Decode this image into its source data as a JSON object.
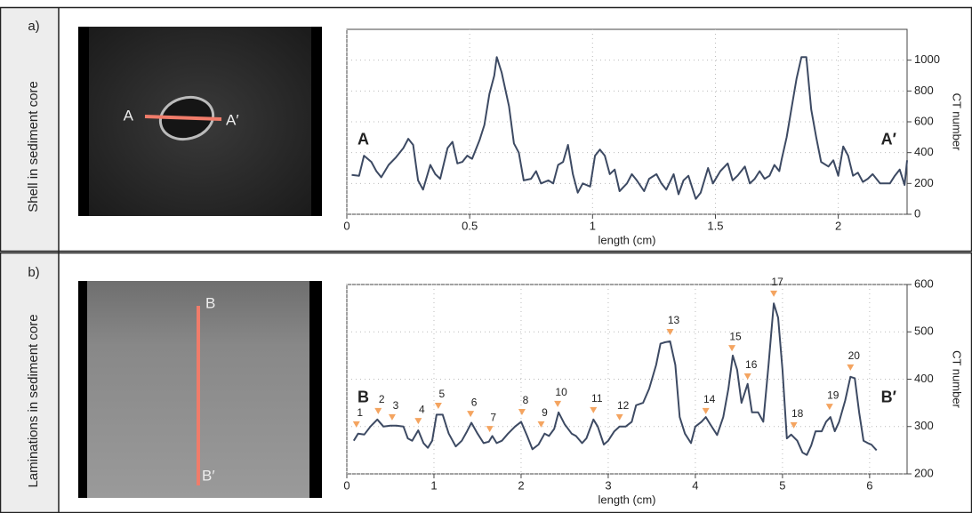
{
  "chart_data": [
    {
      "type": "line",
      "panel_label": "a)",
      "side_title": "Shell in sediment core",
      "section_start": "A",
      "section_end": "A′",
      "x_label": "length (cm)",
      "y_label": "CT number",
      "xlim": [
        0,
        2.28
      ],
      "xticks": [
        0,
        0.5,
        1,
        1.5,
        2
      ],
      "ylim": [
        0,
        1200
      ],
      "yticks": [
        0,
        200,
        400,
        600,
        800,
        1000
      ],
      "grid": true,
      "color": "#3d4a63",
      "x": [
        0.02,
        0.05,
        0.07,
        0.1,
        0.12,
        0.14,
        0.17,
        0.2,
        0.23,
        0.25,
        0.27,
        0.29,
        0.31,
        0.34,
        0.36,
        0.38,
        0.41,
        0.43,
        0.45,
        0.47,
        0.49,
        0.51,
        0.54,
        0.56,
        0.58,
        0.6,
        0.61,
        0.63,
        0.66,
        0.68,
        0.7,
        0.72,
        0.75,
        0.77,
        0.79,
        0.82,
        0.84,
        0.86,
        0.88,
        0.9,
        0.92,
        0.94,
        0.96,
        0.99,
        1.01,
        1.03,
        1.05,
        1.07,
        1.09,
        1.11,
        1.14,
        1.16,
        1.18,
        1.21,
        1.23,
        1.26,
        1.28,
        1.3,
        1.33,
        1.35,
        1.37,
        1.39,
        1.42,
        1.44,
        1.47,
        1.49,
        1.52,
        1.55,
        1.57,
        1.59,
        1.62,
        1.64,
        1.66,
        1.68,
        1.7,
        1.72,
        1.74,
        1.76,
        1.77,
        1.79,
        1.81,
        1.83,
        1.85,
        1.87,
        1.89,
        1.91,
        1.93,
        1.96,
        1.98,
        2.0,
        2.02,
        2.04,
        2.06,
        2.08,
        2.1,
        2.12,
        2.14,
        2.17,
        2.19,
        2.21,
        2.23,
        2.25,
        2.27,
        2.28
      ],
      "values": [
        255,
        250,
        380,
        340,
        280,
        240,
        320,
        370,
        430,
        490,
        450,
        220,
        160,
        320,
        260,
        230,
        430,
        470,
        330,
        340,
        380,
        360,
        480,
        580,
        780,
        900,
        1020,
        920,
        700,
        460,
        400,
        220,
        230,
        280,
        200,
        220,
        200,
        320,
        340,
        450,
        260,
        140,
        200,
        180,
        380,
        420,
        380,
        260,
        290,
        150,
        200,
        260,
        220,
        150,
        230,
        260,
        200,
        160,
        260,
        130,
        220,
        250,
        100,
        140,
        300,
        200,
        280,
        330,
        220,
        250,
        310,
        200,
        230,
        280,
        230,
        250,
        320,
        280,
        360,
        500,
        690,
        880,
        1020,
        1020,
        680,
        500,
        340,
        310,
        350,
        250,
        440,
        380,
        250,
        270,
        210,
        230,
        260,
        200,
        200,
        200,
        250,
        290,
        190,
        350
      ]
    },
    {
      "type": "line",
      "panel_label": "b)",
      "side_title": "Laminations in sediment core",
      "section_start": "B",
      "section_end": "B′",
      "x_label": "length (cm)",
      "y_label": "CT number",
      "xlim": [
        0,
        6.43
      ],
      "xticks": [
        0,
        1,
        2,
        3,
        4,
        5,
        6
      ],
      "ylim": [
        200,
        600
      ],
      "yticks": [
        200,
        300,
        400,
        500,
        600
      ],
      "grid": true,
      "color": "#3d4a63",
      "x": [
        0.08,
        0.13,
        0.2,
        0.27,
        0.35,
        0.42,
        0.5,
        0.57,
        0.65,
        0.7,
        0.75,
        0.82,
        0.88,
        0.93,
        0.98,
        1.03,
        1.1,
        1.17,
        1.25,
        1.32,
        1.38,
        1.43,
        1.5,
        1.57,
        1.63,
        1.67,
        1.72,
        1.78,
        1.85,
        1.93,
        2.0,
        2.07,
        2.13,
        2.2,
        2.27,
        2.32,
        2.38,
        2.43,
        2.5,
        2.58,
        2.63,
        2.7,
        2.75,
        2.83,
        2.88,
        2.95,
        3.0,
        3.07,
        3.13,
        3.2,
        3.27,
        3.32,
        3.4,
        3.47,
        3.55,
        3.6,
        3.65,
        3.71,
        3.77,
        3.82,
        3.88,
        3.95,
        4.0,
        4.07,
        4.12,
        4.17,
        4.25,
        4.32,
        4.38,
        4.43,
        4.48,
        4.53,
        4.6,
        4.65,
        4.72,
        4.78,
        4.84,
        4.9,
        4.95,
        5.0,
        5.05,
        5.1,
        5.17,
        5.23,
        5.28,
        5.33,
        5.38,
        5.45,
        5.5,
        5.55,
        5.6,
        5.65,
        5.72,
        5.78,
        5.83,
        5.88,
        5.93,
        5.98,
        6.02,
        6.08
      ],
      "values": [
        270,
        285,
        283,
        300,
        315,
        300,
        302,
        302,
        300,
        275,
        270,
        292,
        265,
        255,
        270,
        325,
        325,
        285,
        258,
        270,
        290,
        308,
        285,
        265,
        268,
        280,
        265,
        270,
        285,
        300,
        310,
        280,
        252,
        262,
        285,
        280,
        295,
        330,
        305,
        285,
        280,
        265,
        275,
        315,
        300,
        262,
        270,
        290,
        300,
        300,
        310,
        345,
        350,
        380,
        430,
        475,
        478,
        480,
        430,
        320,
        285,
        265,
        300,
        310,
        320,
        305,
        282,
        320,
        380,
        450,
        420,
        350,
        390,
        330,
        330,
        310,
        430,
        560,
        530,
        420,
        275,
        283,
        270,
        245,
        240,
        260,
        290,
        290,
        310,
        320,
        290,
        310,
        355,
        405,
        402,
        330,
        270,
        265,
        262,
        250
      ],
      "peak_color": "#f4a460",
      "peak_labels": [
        "1",
        "2",
        "3",
        "4",
        "5",
        "6",
        "7",
        "8",
        "9",
        "10",
        "11",
        "12",
        "13",
        "14",
        "15",
        "16",
        "17",
        "18",
        "19",
        "20"
      ],
      "peak_x": [
        0.11,
        0.36,
        0.52,
        0.82,
        1.05,
        1.42,
        1.64,
        2.01,
        2.23,
        2.42,
        2.83,
        3.13,
        3.71,
        4.12,
        4.42,
        4.6,
        4.9,
        5.13,
        5.54,
        5.78
      ],
      "peak_y": [
        298,
        326,
        313,
        305,
        337,
        320,
        288,
        324,
        298,
        341,
        328,
        313,
        493,
        326,
        459,
        399,
        574,
        296,
        335,
        418
      ]
    }
  ]
}
